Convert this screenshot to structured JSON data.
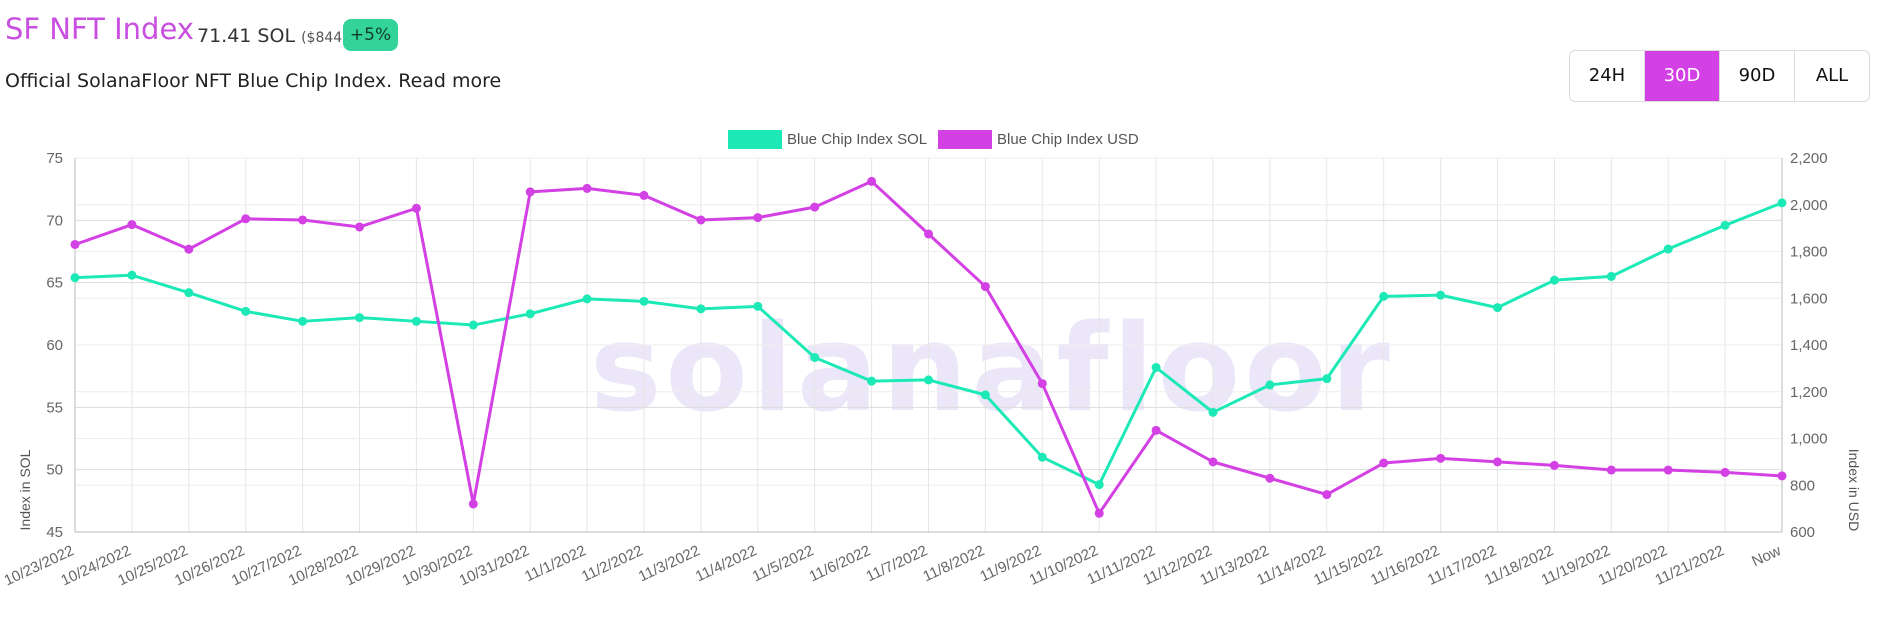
{
  "header": {
    "title": "SF NFT Index",
    "price_sol": "71.41 SOL",
    "price_usd": "($844)",
    "change_badge": "+5%",
    "description": "Official SolanaFloor NFT Blue Chip Index. Read more"
  },
  "range_buttons": [
    {
      "label": "24H",
      "active": false
    },
    {
      "label": "30D",
      "active": true
    },
    {
      "label": "90D",
      "active": false
    },
    {
      "label": "ALL",
      "active": false
    }
  ],
  "watermark": "solanafloor",
  "chart_data": {
    "type": "line",
    "categories": [
      "10/23/2022",
      "10/24/2022",
      "10/25/2022",
      "10/26/2022",
      "10/27/2022",
      "10/28/2022",
      "10/29/2022",
      "10/30/2022",
      "10/31/2022",
      "11/1/2022",
      "11/2/2022",
      "11/3/2022",
      "11/4/2022",
      "11/5/2022",
      "11/6/2022",
      "11/7/2022",
      "11/8/2022",
      "11/9/2022",
      "11/10/2022",
      "11/11/2022",
      "11/12/2022",
      "11/13/2022",
      "11/14/2022",
      "11/15/2022",
      "11/16/2022",
      "11/17/2022",
      "11/18/2022",
      "11/19/2022",
      "11/20/2022",
      "11/21/2022",
      "Now"
    ],
    "series": [
      {
        "name": "Blue Chip Index SOL",
        "axis": "left",
        "color": "#1de9b6",
        "values": [
          65.4,
          65.6,
          64.2,
          62.7,
          61.9,
          62.2,
          61.9,
          61.6,
          62.5,
          63.7,
          63.5,
          62.9,
          63.1,
          59.0,
          57.1,
          57.2,
          56.0,
          51.0,
          48.8,
          58.2,
          54.6,
          56.8,
          57.3,
          63.9,
          64.0,
          63.0,
          65.2,
          65.5,
          67.7,
          69.6,
          71.4
        ]
      },
      {
        "name": "Blue Chip Index USD",
        "axis": "right",
        "color": "#d340e3",
        "values": [
          1830,
          1915,
          1810,
          1940,
          1935,
          1905,
          1985,
          720,
          2055,
          2070,
          2040,
          1935,
          1945,
          1990,
          2100,
          1875,
          1650,
          1235,
          680,
          1035,
          900,
          830,
          760,
          895,
          915,
          900,
          885,
          865,
          865,
          855,
          840
        ]
      }
    ],
    "left_axis": {
      "label": "Index in SOL",
      "min": 45,
      "max": 75,
      "ticks": [
        "45",
        "50",
        "55",
        "60",
        "65",
        "70",
        "75"
      ]
    },
    "right_axis": {
      "label": "Index in USD",
      "min": 600,
      "max": 2200,
      "ticks": [
        "600",
        "800",
        "1,000",
        "1,200",
        "1,400",
        "1,600",
        "1,800",
        "2,000",
        "2,200"
      ]
    },
    "grid": true,
    "legend_position": "top-center"
  }
}
